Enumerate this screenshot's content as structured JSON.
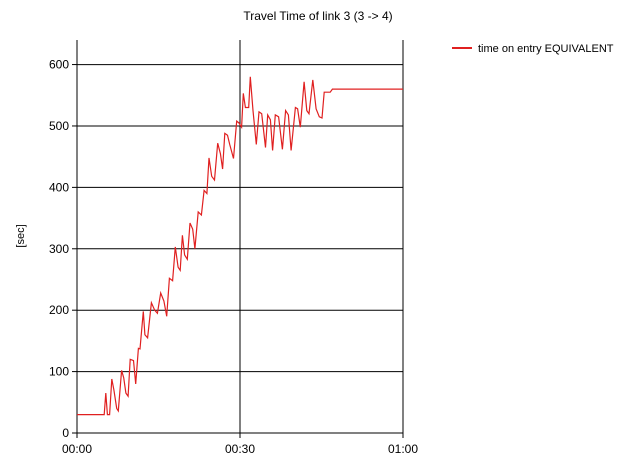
{
  "chart_data": {
    "type": "line",
    "title": "Travel Time of link 3 (3 -> 4)",
    "xlabel": "",
    "ylabel": "[sec]",
    "x_unit": "minutes",
    "xlim": [
      0,
      60
    ],
    "ylim": [
      0,
      640
    ],
    "x_ticks": [
      {
        "value": 0,
        "label": "00:00"
      },
      {
        "value": 30,
        "label": "00:30"
      },
      {
        "value": 60,
        "label": "01:00"
      }
    ],
    "y_ticks": [
      0,
      100,
      200,
      300,
      400,
      500,
      600
    ],
    "grid": true,
    "legend_position": "top-right",
    "series": [
      {
        "name": "time on entry EQUIVALENT",
        "color": "#e02020",
        "x": [
          0,
          5.0,
          5.3,
          5.6,
          6.0,
          6.4,
          6.8,
          7.3,
          7.6,
          8.2,
          8.6,
          9.0,
          9.4,
          9.8,
          10.4,
          10.8,
          11.3,
          11.6,
          12.2,
          12.5,
          13.0,
          13.7,
          14.3,
          14.8,
          15.4,
          16.0,
          16.5,
          17.0,
          17.6,
          18.1,
          18.6,
          19.0,
          19.4,
          19.8,
          20.3,
          20.8,
          21.3,
          21.7,
          22.3,
          22.9,
          23.4,
          23.9,
          24.3,
          24.8,
          25.3,
          25.9,
          26.4,
          26.8,
          27.2,
          27.7,
          28.1,
          28.8,
          29.4,
          29.8,
          30.3,
          30.6,
          31.0,
          31.6,
          31.9,
          32.4,
          33.0,
          33.5,
          34.0,
          34.7,
          35.1,
          35.6,
          36.0,
          36.5,
          37.1,
          37.8,
          38.4,
          38.9,
          39.4,
          40.2,
          40.6,
          41.1,
          41.8,
          42.3,
          42.7,
          43.4,
          44.0,
          44.6,
          45.1,
          45.5,
          46.0,
          46.6,
          47.0,
          47.6,
          48.1,
          48.6,
          49.0,
          49.4,
          49.8,
          50.6,
          60
        ],
        "y": [
          30,
          30,
          65,
          30,
          30,
          88,
          70,
          40,
          36,
          102,
          90,
          65,
          60,
          120,
          118,
          80,
          138,
          137,
          198,
          160,
          155,
          212,
          200,
          195,
          228,
          215,
          190,
          252,
          248,
          303,
          270,
          265,
          322,
          290,
          283,
          342,
          332,
          300,
          360,
          355,
          395,
          390,
          448,
          418,
          412,
          472,
          455,
          430,
          488,
          485,
          470,
          447,
          508,
          505,
          498,
          553,
          530,
          530,
          580,
          525,
          470,
          523,
          520,
          465,
          518,
          510,
          460,
          518,
          515,
          462,
          525,
          518,
          460,
          530,
          528,
          498,
          572,
          525,
          520,
          575,
          528,
          515,
          513,
          555,
          555,
          555,
          560,
          560,
          560,
          560,
          560,
          560,
          560,
          560,
          560
        ]
      }
    ]
  }
}
